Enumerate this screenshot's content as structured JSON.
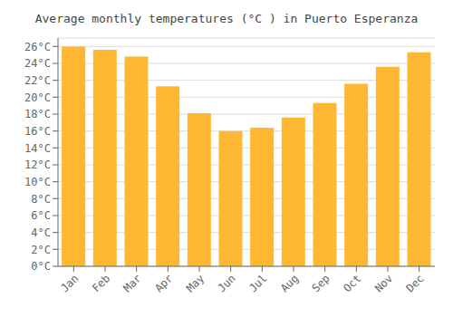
{
  "chart_data": {
    "type": "bar",
    "title": "Average monthly temperatures (°C ) in Puerto Esperanza",
    "categories": [
      "Jan",
      "Feb",
      "Mar",
      "Apr",
      "May",
      "Jun",
      "Jul",
      "Aug",
      "Sep",
      "Oct",
      "Nov",
      "Dec"
    ],
    "values": [
      26.0,
      25.6,
      24.8,
      21.3,
      18.1,
      16.0,
      16.4,
      17.6,
      19.3,
      21.6,
      23.6,
      25.3
    ],
    "color": "#FFB833",
    "ylim": [
      0,
      27
    ],
    "yticks": [
      {
        "value": 0,
        "label": "0°C"
      },
      {
        "value": 2,
        "label": "2°C"
      },
      {
        "value": 4,
        "label": "4°C"
      },
      {
        "value": 6,
        "label": "6°C"
      },
      {
        "value": 8,
        "label": "8°C"
      },
      {
        "value": 10,
        "label": "10°C"
      },
      {
        "value": 12,
        "label": "12°C"
      },
      {
        "value": 14,
        "label": "14°C"
      },
      {
        "value": 16,
        "label": "16°C"
      },
      {
        "value": 18,
        "label": "18°C"
      },
      {
        "value": 20,
        "label": "20°C"
      },
      {
        "value": 22,
        "label": "22°C"
      },
      {
        "value": 24,
        "label": "24°C"
      },
      {
        "value": 26,
        "label": "26°C"
      }
    ],
    "grid": true
  }
}
